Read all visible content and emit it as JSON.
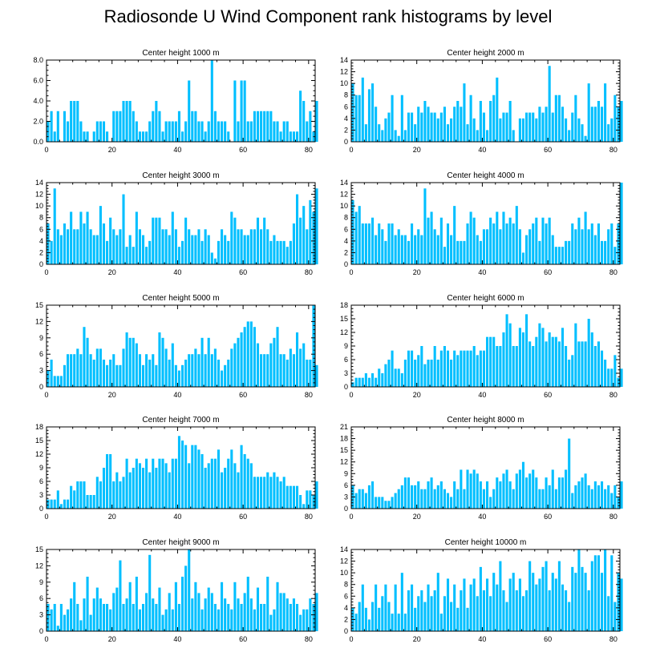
{
  "figure": {
    "title": "Radiosonde U Wind Component rank histograms by level",
    "bar_color": "#00bfff",
    "axis_color": "#000000"
  },
  "chart_data": [
    {
      "type": "bar",
      "title": "Center height 1000 m",
      "xlim": [
        0,
        82
      ],
      "ylim": [
        0,
        8
      ],
      "xticks": [
        0,
        20,
        40,
        60,
        80
      ],
      "yticks": [
        0,
        2,
        4,
        6,
        8
      ],
      "ytick_labels": [
        "0.0",
        "2.0",
        "4.0",
        "6.0",
        "8.0"
      ],
      "values": [
        2,
        3,
        1,
        3,
        0,
        3,
        2,
        4,
        4,
        4,
        2,
        1,
        1,
        0,
        1,
        2,
        2,
        2,
        1,
        0,
        3,
        3,
        3,
        4,
        4,
        4,
        3,
        2,
        1,
        1,
        1,
        2,
        3,
        4,
        3,
        1,
        2,
        2,
        2,
        2,
        3,
        1,
        2,
        6,
        3,
        3,
        2,
        2,
        1,
        2,
        8,
        3,
        2,
        2,
        2,
        1,
        0,
        6,
        2,
        6,
        6,
        2,
        2,
        3,
        3,
        3,
        3,
        3,
        3,
        2,
        2,
        1,
        2,
        2,
        1,
        1,
        1,
        5,
        4,
        2,
        3,
        1,
        4
      ]
    },
    {
      "type": "bar",
      "title": "Center height 2000 m",
      "xlim": [
        0,
        82
      ],
      "ylim": [
        0,
        14
      ],
      "xticks": [
        0,
        20,
        40,
        60,
        80
      ],
      "yticks": [
        0,
        2,
        4,
        6,
        8,
        10,
        12,
        14
      ],
      "ytick_labels": [
        "0",
        "2",
        "4",
        "6",
        "8",
        "10",
        "12",
        "14"
      ],
      "values": [
        10,
        8,
        8,
        11,
        3,
        9,
        10,
        6,
        3,
        2,
        4,
        5,
        8,
        2,
        1,
        8,
        2,
        5,
        5,
        3,
        6,
        5,
        7,
        6,
        5,
        5,
        4,
        5,
        6,
        3,
        4,
        6,
        7,
        6,
        10,
        3,
        8,
        4,
        2,
        7,
        5,
        2,
        7,
        8,
        11,
        4,
        5,
        5,
        7,
        2,
        0,
        4,
        4,
        5,
        5,
        5,
        4,
        6,
        5,
        6,
        13,
        5,
        8,
        8,
        6,
        4,
        2,
        5,
        8,
        4,
        3,
        1,
        10,
        6,
        6,
        7,
        6,
        10,
        3,
        4,
        8,
        6,
        7
      ]
    },
    {
      "type": "bar",
      "title": "Center height 3000 m",
      "xlim": [
        0,
        82
      ],
      "ylim": [
        0,
        14
      ],
      "xticks": [
        0,
        20,
        40,
        60,
        80
      ],
      "yticks": [
        0,
        2,
        4,
        6,
        8,
        10,
        12,
        14
      ],
      "ytick_labels": [
        "0",
        "2",
        "4",
        "6",
        "8",
        "10",
        "12",
        "14"
      ],
      "values": [
        7,
        4,
        13,
        6,
        5,
        7,
        6,
        9,
        6,
        6,
        9,
        7,
        9,
        6,
        5,
        5,
        10,
        7,
        4,
        8,
        6,
        5,
        6,
        12,
        3,
        5,
        3,
        9,
        6,
        5,
        3,
        4,
        8,
        8,
        8,
        6,
        6,
        5,
        9,
        6,
        3,
        4,
        8,
        6,
        5,
        5,
        6,
        4,
        6,
        5,
        2,
        1,
        4,
        6,
        5,
        4,
        9,
        8,
        6,
        6,
        5,
        5,
        6,
        6,
        8,
        6,
        8,
        6,
        4,
        5,
        4,
        4,
        4,
        3,
        4,
        7,
        12,
        8,
        10,
        6,
        11,
        9,
        13
      ]
    },
    {
      "type": "bar",
      "title": "Center height 4000 m",
      "xlim": [
        0,
        82
      ],
      "ylim": [
        0,
        14
      ],
      "xticks": [
        0,
        20,
        40,
        60,
        80
      ],
      "yticks": [
        0,
        2,
        4,
        6,
        8,
        10,
        12,
        14
      ],
      "ytick_labels": [
        "0",
        "2",
        "4",
        "6",
        "8",
        "10",
        "12",
        "14"
      ],
      "values": [
        11,
        9,
        10,
        7,
        7,
        7,
        8,
        5,
        7,
        6,
        4,
        7,
        7,
        5,
        6,
        5,
        5,
        4,
        7,
        5,
        6,
        5,
        13,
        8,
        9,
        6,
        5,
        8,
        3,
        7,
        5,
        10,
        4,
        4,
        4,
        7,
        9,
        8,
        5,
        4,
        6,
        6,
        8,
        7,
        9,
        6,
        9,
        7,
        8,
        7,
        10,
        6,
        2,
        5,
        6,
        7,
        8,
        4,
        8,
        7,
        8,
        5,
        3,
        3,
        3,
        4,
        4,
        7,
        6,
        8,
        6,
        9,
        6,
        7,
        5,
        7,
        4,
        4,
        6,
        7,
        3,
        7,
        14
      ]
    },
    {
      "type": "bar",
      "title": "Center height 5000 m",
      "xlim": [
        0,
        82
      ],
      "ylim": [
        0,
        15
      ],
      "xticks": [
        0,
        20,
        40,
        60,
        80
      ],
      "yticks": [
        0,
        3,
        6,
        9,
        12,
        15
      ],
      "ytick_labels": [
        "0",
        "3",
        "6",
        "9",
        "12",
        "15"
      ],
      "values": [
        3,
        5,
        2,
        2,
        2,
        4,
        6,
        6,
        6,
        7,
        6,
        11,
        9,
        6,
        5,
        7,
        7,
        5,
        4,
        5,
        6,
        4,
        4,
        7,
        10,
        9,
        9,
        8,
        6,
        4,
        6,
        5,
        6,
        4,
        10,
        9,
        7,
        5,
        8,
        4,
        3,
        4,
        5,
        6,
        6,
        7,
        6,
        9,
        6,
        9,
        6,
        7,
        5,
        3,
        4,
        5,
        7,
        8,
        9,
        10,
        11,
        12,
        12,
        11,
        8,
        6,
        6,
        6,
        8,
        9,
        11,
        6,
        6,
        5,
        7,
        6,
        10,
        7,
        8,
        5,
        5,
        15,
        4
      ]
    },
    {
      "type": "bar",
      "title": "Center height 6000 m",
      "xlim": [
        0,
        82
      ],
      "ylim": [
        0,
        18
      ],
      "xticks": [
        0,
        20,
        40,
        60,
        80
      ],
      "yticks": [
        0,
        3,
        6,
        9,
        12,
        15,
        18
      ],
      "ytick_labels": [
        "0",
        "3",
        "6",
        "9",
        "12",
        "15",
        "18"
      ],
      "values": [
        1,
        2,
        2,
        2,
        3,
        2,
        3,
        2,
        4,
        3,
        5,
        6,
        8,
        4,
        4,
        3,
        6,
        8,
        8,
        6,
        7,
        9,
        5,
        6,
        6,
        9,
        6,
        8,
        9,
        8,
        6,
        8,
        7,
        8,
        8,
        8,
        8,
        9,
        7,
        8,
        8,
        11,
        11,
        11,
        9,
        9,
        12,
        16,
        14,
        9,
        9,
        13,
        12,
        16,
        10,
        9,
        11,
        14,
        13,
        10,
        12,
        11,
        11,
        10,
        13,
        9,
        6,
        7,
        14,
        10,
        10,
        10,
        15,
        12,
        9,
        10,
        8,
        6,
        4,
        4,
        7,
        2,
        4
      ]
    },
    {
      "type": "bar",
      "title": "Center height 7000 m",
      "xlim": [
        0,
        82
      ],
      "ylim": [
        0,
        18
      ],
      "xticks": [
        0,
        20,
        40,
        60,
        80
      ],
      "yticks": [
        0,
        3,
        6,
        9,
        12,
        15,
        18
      ],
      "ytick_labels": [
        "0",
        "3",
        "6",
        "9",
        "12",
        "15",
        "18"
      ],
      "values": [
        2,
        2,
        2,
        4,
        1,
        2,
        2,
        5,
        4,
        6,
        6,
        6,
        3,
        3,
        3,
        7,
        6,
        9,
        12,
        12,
        6,
        8,
        6,
        7,
        11,
        8,
        9,
        11,
        10,
        9,
        11,
        8,
        11,
        9,
        11,
        11,
        10,
        8,
        11,
        11,
        16,
        15,
        14,
        10,
        14,
        14,
        13,
        12,
        9,
        10,
        11,
        11,
        13,
        8,
        9,
        11,
        13,
        10,
        8,
        14,
        12,
        11,
        10,
        7,
        7,
        7,
        7,
        8,
        7,
        8,
        7,
        6,
        7,
        5,
        5,
        5,
        5,
        3,
        1,
        4,
        4,
        3,
        6
      ]
    },
    {
      "type": "bar",
      "title": "Center height 8000 m",
      "xlim": [
        0,
        82
      ],
      "ylim": [
        0,
        21
      ],
      "xticks": [
        0,
        20,
        40,
        60,
        80
      ],
      "yticks": [
        0,
        3,
        6,
        9,
        12,
        15,
        18,
        21
      ],
      "ytick_labels": [
        "0",
        "3",
        "6",
        "9",
        "12",
        "15",
        "18",
        "21"
      ],
      "values": [
        6,
        4,
        5,
        5,
        4,
        6,
        7,
        3,
        3,
        3,
        2,
        2,
        3,
        4,
        5,
        6,
        8,
        8,
        6,
        6,
        7,
        5,
        5,
        7,
        8,
        5,
        6,
        7,
        5,
        4,
        3,
        7,
        5,
        10,
        5,
        10,
        9,
        10,
        9,
        7,
        5,
        7,
        3,
        5,
        8,
        7,
        9,
        10,
        7,
        5,
        9,
        10,
        12,
        8,
        9,
        10,
        8,
        5,
        5,
        8,
        6,
        10,
        5,
        8,
        8,
        10,
        18,
        4,
        6,
        7,
        8,
        9,
        6,
        5,
        7,
        6,
        7,
        5,
        6,
        4,
        6,
        3,
        7
      ]
    },
    {
      "type": "bar",
      "title": "Center height 9000 m",
      "xlim": [
        0,
        82
      ],
      "ylim": [
        0,
        15
      ],
      "xticks": [
        0,
        20,
        40,
        60,
        80
      ],
      "yticks": [
        0,
        3,
        6,
        9,
        12,
        15
      ],
      "ytick_labels": [
        "0",
        "3",
        "6",
        "9",
        "12",
        "15"
      ],
      "values": [
        5,
        4,
        5,
        1,
        5,
        3,
        4,
        6,
        9,
        5,
        2,
        6,
        10,
        3,
        6,
        8,
        6,
        5,
        5,
        4,
        7,
        8,
        13,
        5,
        6,
        9,
        5,
        10,
        4,
        5,
        7,
        14,
        6,
        5,
        8,
        3,
        4,
        7,
        4,
        9,
        5,
        10,
        12,
        15,
        6,
        9,
        7,
        4,
        6,
        8,
        7,
        5,
        4,
        9,
        6,
        5,
        4,
        9,
        6,
        5,
        7,
        10,
        6,
        4,
        8,
        5,
        5,
        10,
        3,
        4,
        9,
        7,
        7,
        6,
        5,
        6,
        5,
        3,
        4,
        4,
        6,
        5,
        7
      ]
    },
    {
      "type": "bar",
      "title": "Center height 10000 m",
      "xlim": [
        0,
        82
      ],
      "ylim": [
        0,
        14
      ],
      "xticks": [
        0,
        20,
        40,
        60,
        80
      ],
      "yticks": [
        0,
        2,
        4,
        6,
        8,
        10,
        12,
        14
      ],
      "ytick_labels": [
        "0",
        "2",
        "4",
        "6",
        "8",
        "10",
        "12",
        "14"
      ],
      "values": [
        4,
        3,
        5,
        8,
        4,
        2,
        5,
        8,
        4,
        6,
        8,
        5,
        3,
        8,
        3,
        10,
        3,
        7,
        8,
        4,
        6,
        7,
        5,
        8,
        6,
        7,
        10,
        3,
        6,
        9,
        5,
        8,
        4,
        7,
        9,
        4,
        8,
        9,
        6,
        11,
        7,
        9,
        6,
        10,
        8,
        12,
        7,
        5,
        9,
        10,
        7,
        9,
        6,
        7,
        12,
        10,
        8,
        9,
        11,
        12,
        7,
        10,
        9,
        12,
        8,
        7,
        5,
        11,
        10,
        14,
        11,
        10,
        7,
        12,
        13,
        13,
        10,
        14,
        6,
        13,
        5,
        10,
        9
      ]
    }
  ]
}
